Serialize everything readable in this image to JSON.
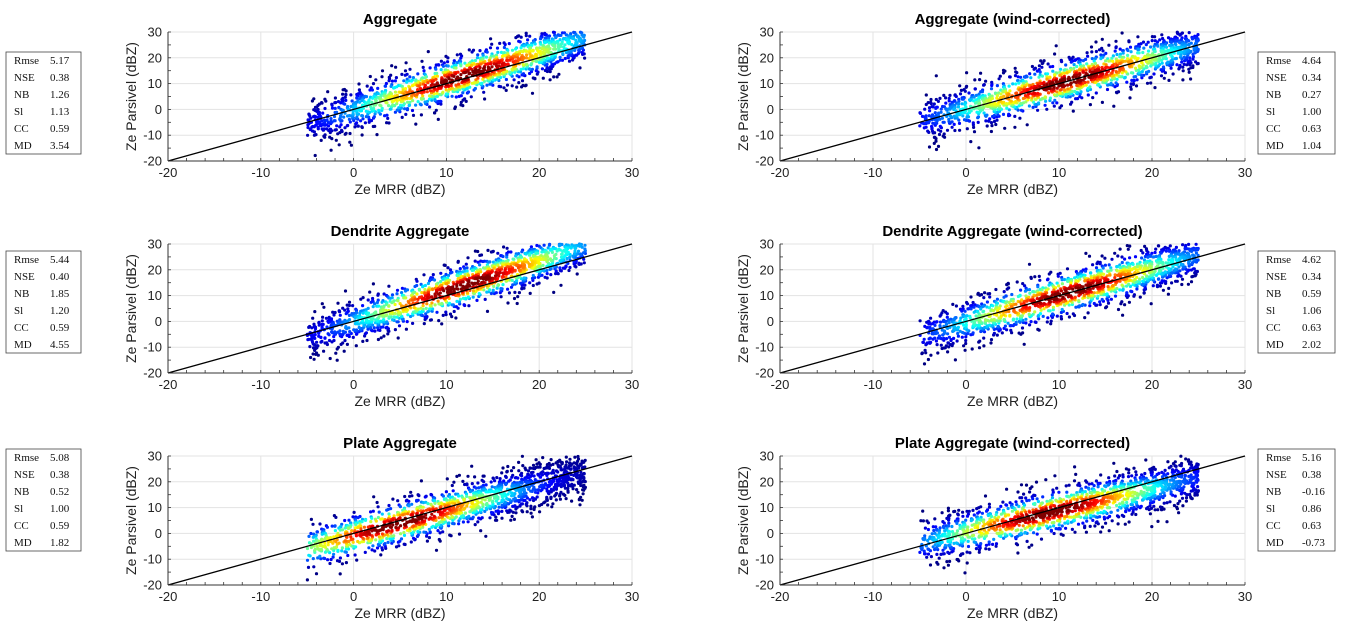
{
  "chart_data": [
    {
      "type": "scatter",
      "title": "Aggregate",
      "xlabel": "Ze MRR (dBZ)",
      "ylabel": "Ze Parsivel (dBZ)",
      "xlim": [
        -20,
        30
      ],
      "ylim": [
        -20,
        30
      ],
      "xticks": [
        -20,
        -10,
        0,
        10,
        20,
        30
      ],
      "yticks": [
        -20,
        -10,
        0,
        10,
        20,
        30
      ],
      "grid": true,
      "reference_line": [
        [
          -20,
          -20
        ],
        [
          30,
          30
        ]
      ],
      "density_coloring": "jet",
      "density_peak": [
        12,
        13
      ],
      "stats_position": "outside-left",
      "stats": [
        {
          "label": "Rmse",
          "value": "5.17"
        },
        {
          "label": "NSE",
          "value": "0.38"
        },
        {
          "label": "NB",
          "value": "1.26"
        },
        {
          "label": "Sl",
          "value": "1.13"
        },
        {
          "label": "CC",
          "value": "0.59"
        },
        {
          "label": "MD",
          "value": "3.54"
        }
      ]
    },
    {
      "type": "scatter",
      "title": "Aggregate (wind-corrected)",
      "xlabel": "Ze MRR (dBZ)",
      "ylabel": "Ze Parsivel (dBZ)",
      "xlim": [
        -20,
        30
      ],
      "ylim": [
        -20,
        30
      ],
      "xticks": [
        -20,
        -10,
        0,
        10,
        20,
        30
      ],
      "yticks": [
        -20,
        -10,
        0,
        10,
        20,
        30
      ],
      "grid": true,
      "reference_line": [
        [
          -20,
          -20
        ],
        [
          30,
          30
        ]
      ],
      "density_coloring": "jet",
      "density_peak": [
        11,
        11
      ],
      "stats_position": "outside-right",
      "stats": [
        {
          "label": "Rmse",
          "value": "4.64"
        },
        {
          "label": "NSE",
          "value": "0.34"
        },
        {
          "label": "NB",
          "value": "0.27"
        },
        {
          "label": "Sl",
          "value": "1.00"
        },
        {
          "label": "CC",
          "value": "0.63"
        },
        {
          "label": "MD",
          "value": "1.04"
        }
      ]
    },
    {
      "type": "scatter",
      "title": "Dendrite Aggregate",
      "xlabel": "Ze MRR (dBZ)",
      "ylabel": "Ze Parsivel (dBZ)",
      "xlim": [
        -20,
        30
      ],
      "ylim": [
        -20,
        30
      ],
      "xticks": [
        -20,
        -10,
        0,
        10,
        20,
        30
      ],
      "yticks": [
        -20,
        -10,
        0,
        10,
        20,
        30
      ],
      "grid": true,
      "reference_line": [
        [
          -20,
          -20
        ],
        [
          30,
          30
        ]
      ],
      "density_coloring": "jet",
      "density_peak": [
        12,
        14
      ],
      "stats_position": "outside-left",
      "stats": [
        {
          "label": "Rmse",
          "value": "5.44"
        },
        {
          "label": "NSE",
          "value": "0.40"
        },
        {
          "label": "NB",
          "value": "1.85"
        },
        {
          "label": "Sl",
          "value": "1.20"
        },
        {
          "label": "CC",
          "value": "0.59"
        },
        {
          "label": "MD",
          "value": "4.55"
        }
      ]
    },
    {
      "type": "scatter",
      "title": "Dendrite Aggregate (wind-corrected)",
      "xlabel": "Ze MRR (dBZ)",
      "ylabel": "Ze Parsivel (dBZ)",
      "xlim": [
        -20,
        30
      ],
      "ylim": [
        -20,
        30
      ],
      "xticks": [
        -20,
        -10,
        0,
        10,
        20,
        30
      ],
      "yticks": [
        -20,
        -10,
        0,
        10,
        20,
        30
      ],
      "grid": true,
      "reference_line": [
        [
          -20,
          -20
        ],
        [
          30,
          30
        ]
      ],
      "density_coloring": "jet",
      "density_peak": [
        11,
        11
      ],
      "stats_position": "outside-right",
      "stats": [
        {
          "label": "Rmse",
          "value": "4.62"
        },
        {
          "label": "NSE",
          "value": "0.34"
        },
        {
          "label": "NB",
          "value": "0.59"
        },
        {
          "label": "Sl",
          "value": "1.06"
        },
        {
          "label": "CC",
          "value": "0.63"
        },
        {
          "label": "MD",
          "value": "2.02"
        }
      ]
    },
    {
      "type": "scatter",
      "title": "Plate Aggregate",
      "xlabel": "Ze MRR (dBZ)",
      "ylabel": "Ze Parsivel (dBZ)",
      "xlim": [
        -20,
        30
      ],
      "ylim": [
        -20,
        30
      ],
      "xticks": [
        -20,
        -10,
        0,
        10,
        20,
        30
      ],
      "yticks": [
        -20,
        -10,
        0,
        10,
        20,
        30
      ],
      "grid": true,
      "reference_line": [
        [
          -20,
          -20
        ],
        [
          30,
          30
        ]
      ],
      "density_coloring": "jet",
      "density_peak": [
        5,
        4
      ],
      "stats_position": "outside-left",
      "stats": [
        {
          "label": "Rmse",
          "value": "5.08"
        },
        {
          "label": "NSE",
          "value": "0.38"
        },
        {
          "label": "NB",
          "value": "0.52"
        },
        {
          "label": "Sl",
          "value": "1.00"
        },
        {
          "label": "CC",
          "value": "0.59"
        },
        {
          "label": "MD",
          "value": "1.82"
        }
      ]
    },
    {
      "type": "scatter",
      "title": "Plate Aggregate (wind-corrected)",
      "xlabel": "Ze MRR (dBZ)",
      "ylabel": "Ze Parsivel (dBZ)",
      "xlim": [
        -20,
        30
      ],
      "ylim": [
        -20,
        30
      ],
      "xticks": [
        -20,
        -10,
        0,
        10,
        20,
        30
      ],
      "yticks": [
        -20,
        -10,
        0,
        10,
        20,
        30
      ],
      "grid": true,
      "reference_line": [
        [
          -20,
          -20
        ],
        [
          30,
          30
        ]
      ],
      "density_coloring": "jet",
      "density_peak": [
        9,
        8
      ],
      "stats_position": "outside-right",
      "stats": [
        {
          "label": "Rmse",
          "value": "5.16"
        },
        {
          "label": "NSE",
          "value": "0.38"
        },
        {
          "label": "NB",
          "value": "-0.16"
        },
        {
          "label": "Sl",
          "value": "0.86"
        },
        {
          "label": "CC",
          "value": "0.63"
        },
        {
          "label": "MD",
          "value": "-0.73"
        }
      ]
    }
  ]
}
